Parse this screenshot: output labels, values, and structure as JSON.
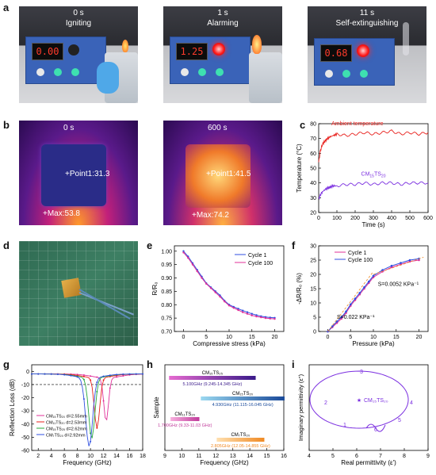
{
  "panel_labels": {
    "a": "a",
    "b": "b",
    "c": "c",
    "d": "d",
    "e": "e",
    "f": "f",
    "g": "g",
    "h": "h",
    "i": "i"
  },
  "panel_a": {
    "frames": [
      {
        "time": "0 s",
        "caption": "Igniting",
        "display": "0.00"
      },
      {
        "time": "1 s",
        "caption": "Alarming",
        "display": "1.25"
      },
      {
        "time": "11 s",
        "caption": "Self-extinguishing",
        "display": "0.68"
      }
    ]
  },
  "panel_b": {
    "frames": [
      {
        "time": "0 s",
        "point": "+Point1:31.3",
        "max": "+Max:53.8"
      },
      {
        "time": "600 s",
        "point": "+Point1:41.5",
        "max": "+Max:74.2"
      }
    ]
  },
  "colors": {
    "red": "#e8201c",
    "purple": "#7b2fe0",
    "blue": "#2f4fe0",
    "magenta": "#e0309a",
    "green": "#26a83a",
    "orange": "#f08a24",
    "cyan": "#1aa3c9"
  },
  "chart_c": {
    "type": "line",
    "xlabel": "Time (s)",
    "ylabel": "Temperature (°C)",
    "xlim": [
      0,
      600
    ],
    "ylim": [
      20,
      80
    ],
    "xticks": [
      0,
      100,
      200,
      300,
      400,
      500,
      600
    ],
    "yticks": [
      20,
      30,
      40,
      50,
      60,
      70,
      80
    ],
    "series": [
      {
        "name": "Ambient temperature",
        "x": [
          0,
          10,
          20,
          40,
          60,
          80,
          100,
          150,
          200,
          250,
          300,
          350,
          400,
          450,
          500,
          550,
          600
        ],
        "y": [
          54,
          62,
          66,
          69,
          71,
          72,
          73,
          72,
          73,
          74,
          73,
          74,
          75,
          73,
          74,
          73,
          74
        ]
      },
      {
        "name": "CM15TS20",
        "x": [
          0,
          10,
          20,
          40,
          60,
          80,
          100,
          150,
          200,
          250,
          300,
          350,
          400,
          450,
          500,
          550,
          600
        ],
        "y": [
          29,
          32,
          34,
          36,
          37,
          38,
          38,
          39,
          39,
          40,
          39,
          40,
          40,
          39,
          40,
          40,
          40
        ]
      }
    ]
  },
  "chart_e": {
    "type": "line",
    "xlabel": "Compressive stress (kPa)",
    "ylabel": "R/R₀",
    "xlim": [
      -2,
      22
    ],
    "ylim": [
      0.7,
      1.02
    ],
    "xticks": [
      0,
      5,
      10,
      15,
      20
    ],
    "yticks": [
      0.7,
      0.75,
      0.8,
      0.85,
      0.9,
      0.95,
      1.0
    ],
    "ytick_labels": [
      "0.70",
      "0.75",
      "0.80",
      "0.85",
      "0.90",
      "0.95",
      "1.00"
    ],
    "x": [
      0,
      1,
      2,
      3,
      4,
      5,
      6,
      7,
      8,
      9,
      10,
      11,
      12,
      13,
      14,
      15,
      16,
      17,
      18,
      19,
      20
    ],
    "series": [
      {
        "name": "Cycle 1",
        "values": [
          1.0,
          0.98,
          0.955,
          0.93,
          0.905,
          0.88,
          0.865,
          0.85,
          0.835,
          0.815,
          0.8,
          0.792,
          0.785,
          0.778,
          0.772,
          0.766,
          0.761,
          0.757,
          0.754,
          0.752,
          0.751
        ]
      },
      {
        "name": "Cycle 100",
        "values": [
          0.995,
          0.975,
          0.95,
          0.925,
          0.9,
          0.878,
          0.862,
          0.846,
          0.83,
          0.812,
          0.797,
          0.788,
          0.78,
          0.772,
          0.766,
          0.76,
          0.756,
          0.753,
          0.75,
          0.748,
          0.747
        ]
      }
    ]
  },
  "chart_f": {
    "type": "line",
    "xlabel": "Pressure (kPa)",
    "ylabel": "-ΔR/R₀ (%)",
    "xlim": [
      -2,
      22
    ],
    "ylim": [
      0,
      30
    ],
    "xticks": [
      0,
      5,
      10,
      15,
      20
    ],
    "yticks": [
      0,
      5,
      10,
      15,
      20,
      25,
      30
    ],
    "x": [
      0,
      1,
      2,
      3,
      4,
      5,
      6,
      7,
      8,
      9,
      10,
      12,
      14,
      16,
      18,
      20
    ],
    "series": [
      {
        "name": "Cycle 1",
        "values": [
          0,
          1.5,
          3,
          4.5,
          6.5,
          9,
          11,
          13,
          15,
          17,
          19,
          21,
          22.5,
          23.5,
          24.5,
          25
        ]
      },
      {
        "name": "Cycle 100",
        "values": [
          0,
          1.8,
          3.5,
          5,
          7,
          9.5,
          11.5,
          13.5,
          15.5,
          17.5,
          19.5,
          21.5,
          23,
          24,
          25,
          25.5
        ]
      }
    ],
    "annotations": [
      "S=0.0052 KPa⁻¹",
      "S=0.022 KPa⁻¹"
    ]
  },
  "chart_g": {
    "type": "line",
    "xlabel": "Frequency (GHz)",
    "ylabel": "Reflection Loss (dB)",
    "xlim": [
      1,
      18
    ],
    "ylim": [
      -60,
      5
    ],
    "xticks": [
      2,
      4,
      6,
      8,
      10,
      12,
      14,
      16,
      18
    ],
    "yticks": [
      -60,
      -50,
      -40,
      -30,
      -20,
      -10,
      0
    ],
    "threshold": -10,
    "series": [
      {
        "name": "CM15TS20 d=2.55mm",
        "dip_x": 12.4,
        "dip_y": -33
      },
      {
        "name": "CM11TS20 d=2.53mm",
        "dip_x": 11.0,
        "dip_y": -38
      },
      {
        "name": "CM15TS25 d=2.62mm",
        "dip_x": 10.2,
        "dip_y": -46
      },
      {
        "name": "CM7TS20 d=2.92mm",
        "dip_x": 9.8,
        "dip_y": -52
      }
    ],
    "legend_labels": [
      "CM₁₅TS₂₀ d=2.55mm",
      "CM₁₁TS₂₀ d=2.53mm",
      "CM₁₅TS₂₅ d=2.62mm",
      "CM₇TS₂₀ d=2.92mm"
    ]
  },
  "chart_h": {
    "type": "bar",
    "xlabel": "Frequency (GHz)",
    "ylabel": "Sample",
    "xlim": [
      9,
      16
    ],
    "xticks": [
      9,
      10,
      11,
      12,
      13,
      14,
      15,
      16
    ],
    "bars": [
      {
        "name": "CM₁₅TS₂₅",
        "range": [
          9.245,
          14.345
        ],
        "label": "5.100GHz (9.245-14.345 GHz)"
      },
      {
        "name": "CM₁₅TS₂₀",
        "range": [
          11.115,
          16.045
        ],
        "label": "4.930GHz (11.115-16.045 GHz)"
      },
      {
        "name": "CM₁₁TS₂₀",
        "range": [
          9.33,
          11.03
        ],
        "label": "1.700GHz (9.33-11.03 GHz)"
      },
      {
        "name": "CM₇TS₂₀",
        "range": [
          12.05,
          14.855
        ],
        "label": "2.805GHz (12.05-14.855 GHz)"
      }
    ]
  },
  "chart_i": {
    "type": "line",
    "xlabel": "Real permittivity (ε')",
    "ylabel": "Imaginary permittivity (ε'')",
    "xlim": [
      4,
      9
    ],
    "xticks": [
      4,
      5,
      6,
      7,
      8,
      9
    ],
    "center_label": "CM₁₅TS₂₀",
    "point_labels": [
      "1",
      "2",
      "3",
      "4",
      "5",
      "6"
    ]
  }
}
